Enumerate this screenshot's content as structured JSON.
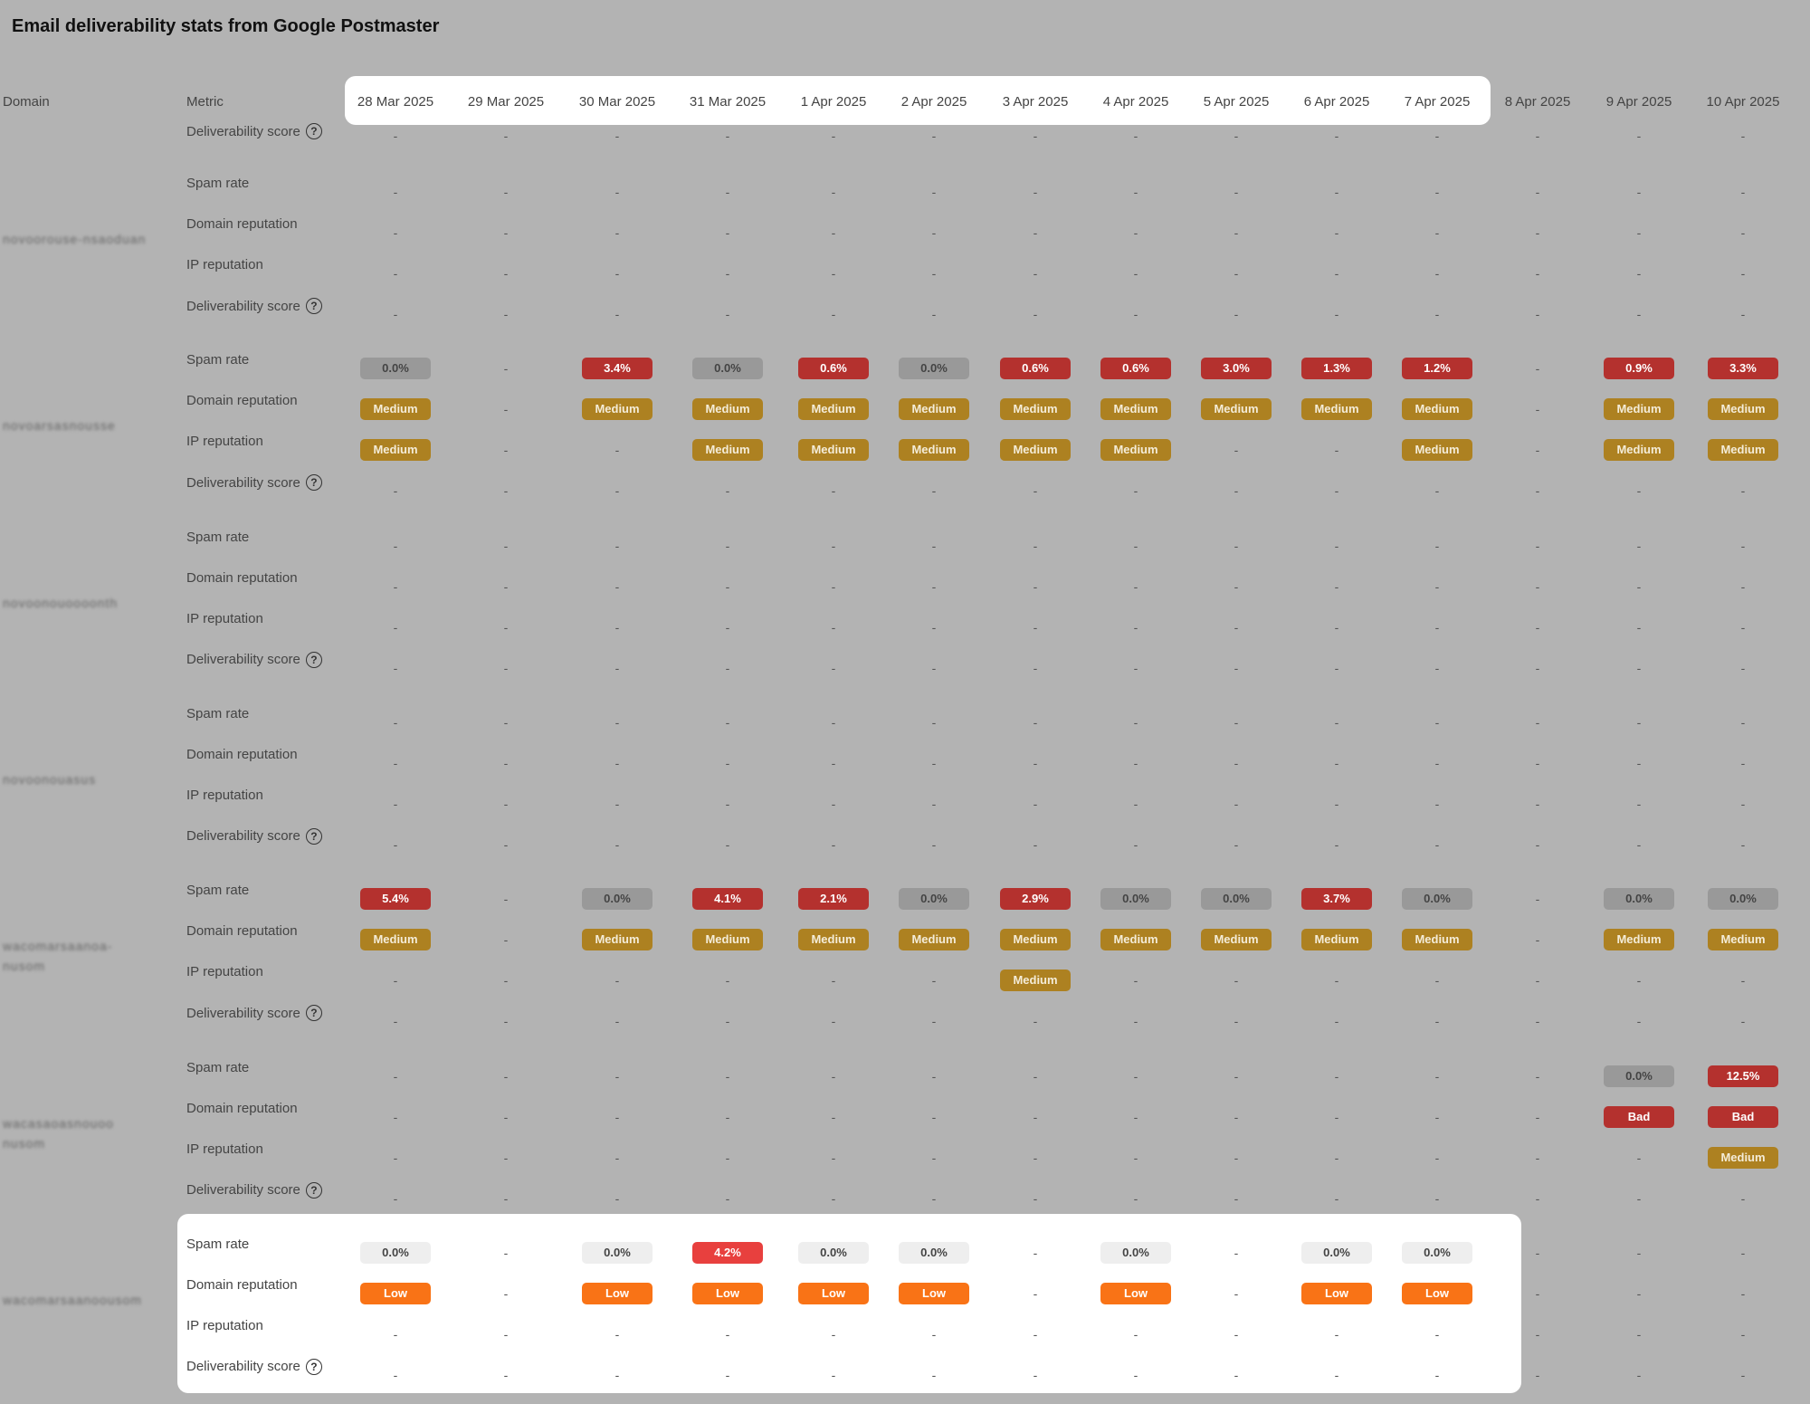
{
  "title": "Email deliverability stats from Google Postmaster",
  "headers": {
    "domain": "Domain",
    "metric": "Metric"
  },
  "dates": [
    "28 Mar 2025",
    "29 Mar 2025",
    "30 Mar 2025",
    "31 Mar 2025",
    "1 Apr 2025",
    "2 Apr 2025",
    "3 Apr 2025",
    "4 Apr 2025",
    "5 Apr 2025",
    "6 Apr 2025",
    "7 Apr 2025",
    "8 Apr 2025",
    "9 Apr 2025",
    "10 Apr 2025"
  ],
  "metric_labels": {
    "spam": "Spam rate",
    "domain": "Domain reputation",
    "ip": "IP reputation",
    "deliv": "Deliverability score"
  },
  "help_icon": "?",
  "top_partial": {
    "metrics": [
      "deliv"
    ],
    "values": [
      [
        "-",
        "-",
        "-",
        "-",
        "-",
        "-",
        "-",
        "-",
        "-",
        "-",
        "-",
        "-",
        "-",
        "-"
      ]
    ]
  },
  "groups": [
    {
      "domain": "novoorouse-nsaoduan",
      "spam": [
        "-",
        "-",
        "-",
        "-",
        "-",
        "-",
        "-",
        "-",
        "-",
        "-",
        "-",
        "-",
        "-",
        "-"
      ],
      "domain_rep": [
        "-",
        "-",
        "-",
        "-",
        "-",
        "-",
        "-",
        "-",
        "-",
        "-",
        "-",
        "-",
        "-",
        "-"
      ],
      "ip": [
        "-",
        "-",
        "-",
        "-",
        "-",
        "-",
        "-",
        "-",
        "-",
        "-",
        "-",
        "-",
        "-",
        "-"
      ],
      "deliv": [
        "-",
        "-",
        "-",
        "-",
        "-",
        "-",
        "-",
        "-",
        "-",
        "-",
        "-",
        "-",
        "-",
        "-"
      ]
    },
    {
      "domain": "novoarsasnousse",
      "spam": [
        "0.0%",
        "-",
        "3.4%",
        "0.0%",
        "0.6%",
        "0.0%",
        "0.6%",
        "0.6%",
        "3.0%",
        "1.3%",
        "1.2%",
        "-",
        "0.9%",
        "3.3%"
      ],
      "domain_rep": [
        "Medium",
        "-",
        "Medium",
        "Medium",
        "Medium",
        "Medium",
        "Medium",
        "Medium",
        "Medium",
        "Medium",
        "Medium",
        "-",
        "Medium",
        "Medium"
      ],
      "ip": [
        "Medium",
        "-",
        "-",
        "Medium",
        "Medium",
        "Medium",
        "Medium",
        "Medium",
        "-",
        "-",
        "Medium",
        "-",
        "Medium",
        "Medium"
      ],
      "deliv": [
        "-",
        "-",
        "-",
        "-",
        "-",
        "-",
        "-",
        "-",
        "-",
        "-",
        "-",
        "-",
        "-",
        "-"
      ]
    },
    {
      "domain": "novoonouoooonth",
      "spam": [
        "-",
        "-",
        "-",
        "-",
        "-",
        "-",
        "-",
        "-",
        "-",
        "-",
        "-",
        "-",
        "-",
        "-"
      ],
      "domain_rep": [
        "-",
        "-",
        "-",
        "-",
        "-",
        "-",
        "-",
        "-",
        "-",
        "-",
        "-",
        "-",
        "-",
        "-"
      ],
      "ip": [
        "-",
        "-",
        "-",
        "-",
        "-",
        "-",
        "-",
        "-",
        "-",
        "-",
        "-",
        "-",
        "-",
        "-"
      ],
      "deliv": [
        "-",
        "-",
        "-",
        "-",
        "-",
        "-",
        "-",
        "-",
        "-",
        "-",
        "-",
        "-",
        "-",
        "-"
      ]
    },
    {
      "domain": "novoonouasus",
      "spam": [
        "-",
        "-",
        "-",
        "-",
        "-",
        "-",
        "-",
        "-",
        "-",
        "-",
        "-",
        "-",
        "-",
        "-"
      ],
      "domain_rep": [
        "-",
        "-",
        "-",
        "-",
        "-",
        "-",
        "-",
        "-",
        "-",
        "-",
        "-",
        "-",
        "-",
        "-"
      ],
      "ip": [
        "-",
        "-",
        "-",
        "-",
        "-",
        "-",
        "-",
        "-",
        "-",
        "-",
        "-",
        "-",
        "-",
        "-"
      ],
      "deliv": [
        "-",
        "-",
        "-",
        "-",
        "-",
        "-",
        "-",
        "-",
        "-",
        "-",
        "-",
        "-",
        "-",
        "-"
      ]
    },
    {
      "domain": "wacomarsaanoa-nusom",
      "spam": [
        "5.4%",
        "-",
        "0.0%",
        "4.1%",
        "2.1%",
        "0.0%",
        "2.9%",
        "0.0%",
        "0.0%",
        "3.7%",
        "0.0%",
        "-",
        "0.0%",
        "0.0%"
      ],
      "domain_rep": [
        "Medium",
        "-",
        "Medium",
        "Medium",
        "Medium",
        "Medium",
        "Medium",
        "Medium",
        "Medium",
        "Medium",
        "Medium",
        "-",
        "Medium",
        "Medium"
      ],
      "ip": [
        "-",
        "-",
        "-",
        "-",
        "-",
        "-",
        "Medium",
        "-",
        "-",
        "-",
        "-",
        "-",
        "-",
        "-"
      ],
      "deliv": [
        "-",
        "-",
        "-",
        "-",
        "-",
        "-",
        "-",
        "-",
        "-",
        "-",
        "-",
        "-",
        "-",
        "-"
      ]
    },
    {
      "domain": "wacasaoasnouoo nusom",
      "spam": [
        "-",
        "-",
        "-",
        "-",
        "-",
        "-",
        "-",
        "-",
        "-",
        "-",
        "-",
        "-",
        "0.0%",
        "12.5%"
      ],
      "domain_rep": [
        "-",
        "-",
        "-",
        "-",
        "-",
        "-",
        "-",
        "-",
        "-",
        "-",
        "-",
        "-",
        "Bad",
        "Bad"
      ],
      "ip": [
        "-",
        "-",
        "-",
        "-",
        "-",
        "-",
        "-",
        "-",
        "-",
        "-",
        "-",
        "-",
        "-",
        "Medium"
      ],
      "deliv": [
        "-",
        "-",
        "-",
        "-",
        "-",
        "-",
        "-",
        "-",
        "-",
        "-",
        "-",
        "-",
        "-",
        "-"
      ]
    },
    {
      "domain": "wacomarsaanoousom",
      "spam": [
        "0.0%",
        "-",
        "0.0%",
        "4.2%",
        "0.0%",
        "0.0%",
        "-",
        "0.0%",
        "-",
        "0.0%",
        "0.0%",
        "-",
        "-",
        "-"
      ],
      "domain_rep": [
        "Low",
        "-",
        "Low",
        "Low",
        "Low",
        "Low",
        "-",
        "Low",
        "-",
        "Low",
        "Low",
        "-",
        "-",
        "-"
      ],
      "ip": [
        "-",
        "-",
        "-",
        "-",
        "-",
        "-",
        "-",
        "-",
        "-",
        "-",
        "-",
        "-",
        "-",
        "-"
      ],
      "deliv": [
        "-",
        "-",
        "-",
        "-",
        "-",
        "-",
        "-",
        "-",
        "-",
        "-",
        "-",
        "-",
        "-",
        "-"
      ]
    }
  ]
}
